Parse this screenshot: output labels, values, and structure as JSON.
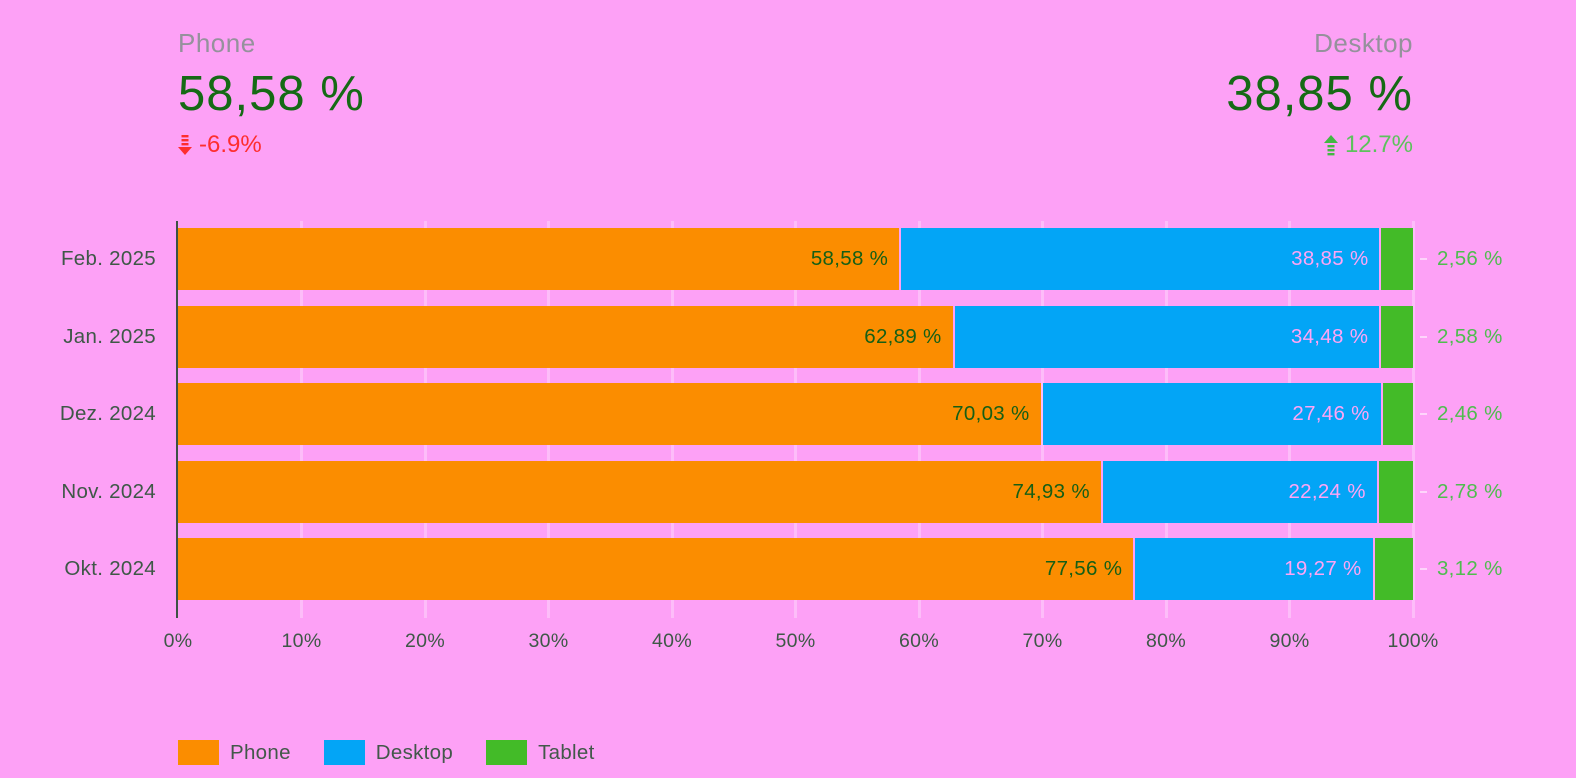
{
  "page": {
    "background": "#fda1f6"
  },
  "scorecards": [
    {
      "title": "Phone",
      "value": "58,58 %",
      "delta": "-6.9%",
      "direction": "down",
      "delta_color": "#fe2e2e"
    },
    {
      "title": "Desktop",
      "value": "38,85 %",
      "delta": "12.7%",
      "direction": "up",
      "delta_color": "#5cc25c"
    }
  ],
  "chart_data": {
    "type": "bar",
    "subtype": "horizontal-stacked-100",
    "title": "",
    "xlabel": "",
    "ylabel": "",
    "xlim": [
      0,
      100
    ],
    "grid": "vertical-faint",
    "legend_position": "bottom-left",
    "categories": [
      "Feb. 2025",
      "Jan. 2025",
      "Dez. 2024",
      "Nov. 2024",
      "Okt. 2024"
    ],
    "series": [
      {
        "name": "Phone",
        "color": "#fb8d00",
        "label_color": "#155f15",
        "values": [
          58.58,
          62.89,
          70.03,
          74.93,
          77.56
        ],
        "labels": [
          "58,58 %",
          "62,89 %",
          "70,03 %",
          "74,93 %",
          "77,56 %"
        ]
      },
      {
        "name": "Desktop",
        "color": "#03a5f6",
        "label_color": "#ffa5f5",
        "values": [
          38.85,
          34.48,
          27.46,
          22.24,
          19.27
        ],
        "labels": [
          "38,85 %",
          "34,48 %",
          "27,46 %",
          "22,24 %",
          "19,27 %"
        ]
      },
      {
        "name": "Tablet",
        "color": "#43bb28",
        "label_color": "#4fbc4f",
        "label_outside": true,
        "values": [
          2.56,
          2.58,
          2.46,
          2.78,
          3.12
        ],
        "labels": [
          "2,56 %",
          "2,58 %",
          "2,46 %",
          "2,78 %",
          "3,12 %"
        ]
      }
    ],
    "x_ticks": [
      "0%",
      "10%",
      "20%",
      "30%",
      "40%",
      "50%",
      "60%",
      "70%",
      "80%",
      "90%",
      "100%"
    ]
  },
  "legend": [
    {
      "label": "Phone",
      "color": "#fb8d00"
    },
    {
      "label": "Desktop",
      "color": "#03a5f6"
    },
    {
      "label": "Tablet",
      "color": "#43bb28"
    }
  ]
}
